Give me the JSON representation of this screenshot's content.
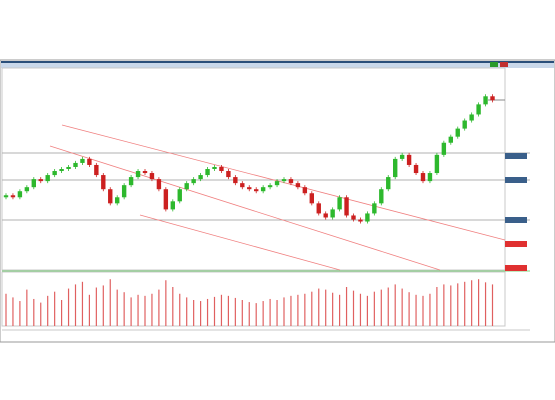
{
  "chart_data": {
    "type": "candlestick",
    "open": [
      36,
      37,
      36,
      39,
      41,
      45,
      44,
      47,
      49,
      50,
      51,
      53,
      55,
      52,
      47,
      40,
      33,
      36,
      42,
      46,
      49,
      48,
      45,
      40,
      30,
      34,
      40,
      43,
      45,
      47,
      50,
      51,
      49,
      46,
      43,
      41,
      40,
      39,
      41,
      42,
      44,
      45,
      43,
      41,
      38,
      33,
      28,
      26,
      30,
      36,
      27,
      25,
      24,
      28,
      33,
      40,
      46,
      55,
      57,
      52,
      48,
      44,
      48,
      57,
      63,
      66,
      70,
      74,
      77,
      82,
      86
    ],
    "high": [
      38,
      38,
      40,
      42,
      46,
      46,
      48,
      50,
      51,
      52,
      54,
      56,
      56,
      53,
      48,
      41,
      37,
      43,
      47,
      50,
      50,
      49,
      46,
      41,
      35,
      41,
      44,
      46,
      48,
      51,
      52,
      52,
      50,
      47,
      44,
      42,
      41,
      42,
      43,
      45,
      46,
      46,
      44,
      42,
      39,
      34,
      29,
      31,
      37,
      37,
      28,
      26,
      29,
      34,
      41,
      47,
      56,
      58,
      58,
      53,
      49,
      49,
      58,
      64,
      67,
      71,
      75,
      78,
      83,
      87,
      87
    ],
    "low": [
      35,
      35,
      35,
      38,
      40,
      43,
      43,
      46,
      48,
      49,
      50,
      52,
      51,
      46,
      39,
      32,
      32,
      35,
      41,
      45,
      47,
      44,
      39,
      29,
      29,
      33,
      39,
      42,
      44,
      46,
      49,
      48,
      45,
      42,
      40,
      39,
      38,
      38,
      40,
      41,
      43,
      42,
      40,
      37,
      32,
      27,
      25,
      25,
      29,
      26,
      24,
      23,
      23,
      27,
      32,
      39,
      45,
      54,
      51,
      47,
      43,
      43,
      47,
      56,
      62,
      65,
      69,
      73,
      76,
      81,
      83
    ],
    "close": [
      37,
      36,
      39,
      41,
      45,
      44,
      47,
      49,
      50,
      51,
      53,
      55,
      52,
      47,
      40,
      33,
      36,
      42,
      46,
      49,
      48,
      45,
      40,
      30,
      34,
      40,
      43,
      45,
      47,
      50,
      51,
      49,
      46,
      43,
      41,
      40,
      39,
      41,
      42,
      44,
      45,
      43,
      41,
      38,
      33,
      28,
      26,
      30,
      36,
      27,
      25,
      24,
      28,
      33,
      40,
      46,
      55,
      57,
      52,
      48,
      44,
      48,
      57,
      63,
      66,
      70,
      74,
      77,
      82,
      86,
      84
    ],
    "volume": [
      62,
      55,
      48,
      70,
      52,
      45,
      58,
      66,
      50,
      72,
      80,
      85,
      60,
      74,
      78,
      90,
      70,
      65,
      55,
      60,
      58,
      62,
      70,
      88,
      75,
      62,
      55,
      50,
      48,
      52,
      56,
      60,
      58,
      54,
      50,
      46,
      44,
      48,
      52,
      50,
      55,
      58,
      60,
      62,
      66,
      72,
      70,
      64,
      60,
      75,
      68,
      62,
      58,
      66,
      70,
      74,
      80,
      72,
      65,
      60,
      58,
      62,
      75,
      80,
      78,
      82,
      85,
      88,
      90,
      84,
      80
    ],
    "ylim": [
      0,
      100
    ],
    "volume_ylim": [
      0,
      100
    ],
    "up_color": "#2db82d",
    "down_color": "#cc2020",
    "volume_color": "#e06060"
  }
}
